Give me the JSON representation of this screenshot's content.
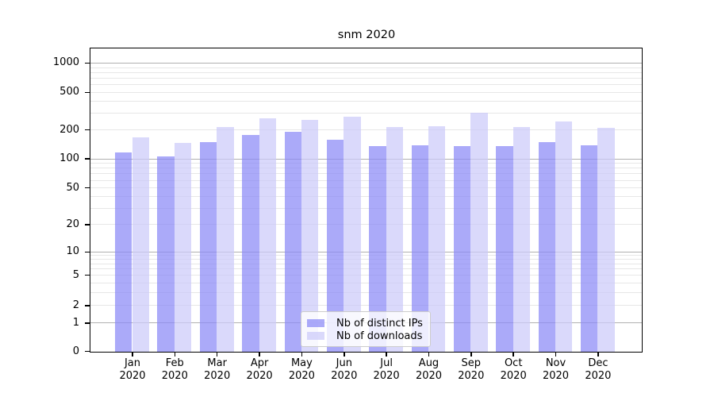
{
  "chart_data": {
    "type": "bar",
    "title": "snm 2020",
    "categories": [
      "Jan 2020",
      "Feb 2020",
      "Mar 2020",
      "Apr 2020",
      "May 2020",
      "Jun 2020",
      "Jul 2020",
      "Aug 2020",
      "Sep 2020",
      "Oct 2020",
      "Nov 2020",
      "Dec 2020"
    ],
    "series": [
      {
        "name": "Nb of distinct IPs",
        "color": "rgba(138,137,246,0.72)",
        "values": [
          117,
          108,
          150,
          179,
          192,
          161,
          137,
          141,
          137,
          137,
          151,
          139
        ]
      },
      {
        "name": "Nb of downloads",
        "color": "rgba(204,203,250,0.72)",
        "values": [
          168,
          148,
          218,
          267,
          259,
          279,
          217,
          223,
          307,
          215,
          249,
          211
        ]
      }
    ],
    "xlabel": "",
    "ylabel": "",
    "yscale": "symlog",
    "yticks": [
      0,
      1,
      2,
      5,
      10,
      20,
      50,
      100,
      200,
      500,
      1000
    ],
    "ylim": [
      0,
      1400
    ],
    "grid": "both",
    "legend": {
      "position": "lower center",
      "labels": [
        "Nb of distinct IPs",
        "Nb of downloads"
      ]
    }
  }
}
